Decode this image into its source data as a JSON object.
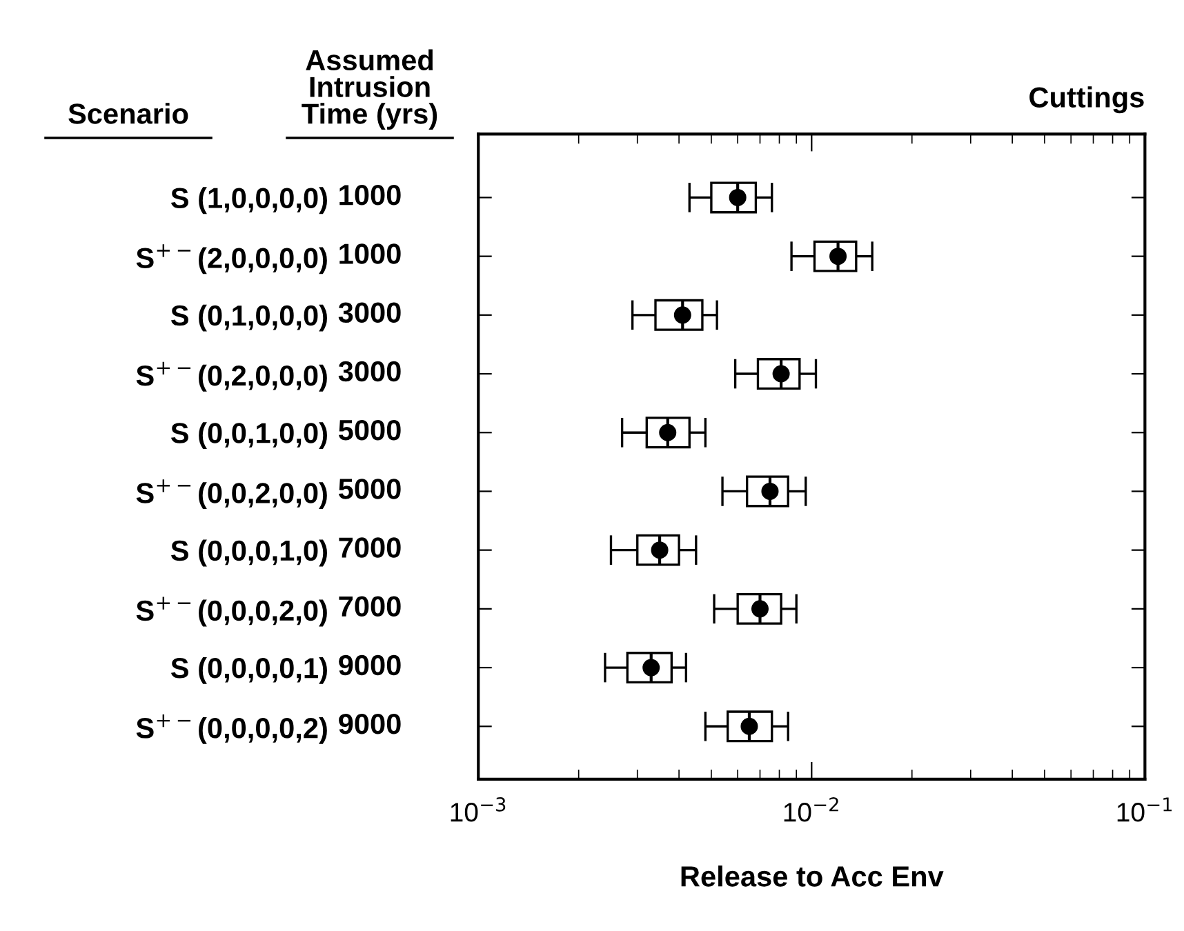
{
  "chart_data": {
    "type": "box",
    "orientation": "horizontal",
    "title": "Cuttings",
    "xlabel": "Release to Acc Env",
    "categories": [
      "S (1,0,0,0,0)",
      "S$^{+−}$(2,0,0,0,0)",
      "S (0,1,0,0,0)",
      "S$^{+−}$(0,2,0,0,0)",
      "S (0,0,1,0,0)",
      "S$^{+−}$(0,0,2,0,0)",
      "S (0,0,0,1,0)",
      "S$^{+−}$(0,0,0,2,0)",
      "S (0,0,0,0,1)",
      "S$^{+−}$(0,0,0,0,2)"
    ],
    "y2_categories": [
      "1000",
      "1000",
      "3000",
      "3000",
      "5000",
      "5000",
      "7000",
      "7000",
      "9000",
      "9000"
    ],
    "annotations": [
      "Scenario",
      "Assumed Intrusion Time (yrs)"
    ],
    "boxes": [
      {
        "low": 0.0043,
        "q1": 0.005,
        "median": 0.006,
        "q3": 0.0068,
        "high": 0.0076,
        "mean": 0.006
      },
      {
        "low": 0.0087,
        "q1": 0.0102,
        "median": 0.012,
        "q3": 0.0136,
        "high": 0.0152,
        "mean": 0.012
      },
      {
        "low": 0.0029,
        "q1": 0.0034,
        "median": 0.0041,
        "q3": 0.0047,
        "high": 0.0052,
        "mean": 0.0041
      },
      {
        "low": 0.0059,
        "q1": 0.0069,
        "median": 0.0081,
        "q3": 0.0092,
        "high": 0.0103,
        "mean": 0.0081
      },
      {
        "low": 0.0027,
        "q1": 0.0032,
        "median": 0.0037,
        "q3": 0.0043,
        "high": 0.0048,
        "mean": 0.0037
      },
      {
        "low": 0.0054,
        "q1": 0.0064,
        "median": 0.0075,
        "q3": 0.0085,
        "high": 0.0096,
        "mean": 0.0075
      },
      {
        "low": 0.0025,
        "q1": 0.003,
        "median": 0.0035,
        "q3": 0.004,
        "high": 0.0045,
        "mean": 0.0035
      },
      {
        "low": 0.0051,
        "q1": 0.006,
        "median": 0.007,
        "q3": 0.0081,
        "high": 0.009,
        "mean": 0.007
      },
      {
        "low": 0.0024,
        "q1": 0.0028,
        "median": 0.0033,
        "q3": 0.0038,
        "high": 0.0042,
        "mean": 0.0033
      },
      {
        "low": 0.0048,
        "q1": 0.0056,
        "median": 0.0065,
        "q3": 0.0076,
        "high": 0.0085,
        "mean": 0.0065
      }
    ],
    "log": "x",
    "xlim": [
      0.001,
      0.1
    ],
    "xticks": [
      {
        "value": 0.001,
        "label": "10$^{−3}$"
      },
      {
        "value": 0.01,
        "label": "10$^{−2}$"
      },
      {
        "value": 0.1,
        "label": "10$^{−1}$"
      }
    ],
    "grid": false,
    "legend": false,
    "marker": "circle"
  }
}
